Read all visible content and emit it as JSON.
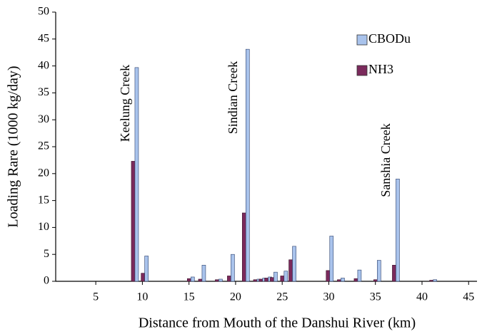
{
  "chart_data": {
    "type": "bar",
    "xlabel": "Distance from Mouth of the Danshui River (km)",
    "ylabel": "Loading Rare (1000 kg/day)",
    "x": [
      9.2,
      10.25,
      15.2,
      16.4,
      18.2,
      19.5,
      21.1,
      22.3,
      22.9,
      23.5,
      24.1,
      25.2,
      26.1,
      30.1,
      31.3,
      33.1,
      35.2,
      37.2,
      41.2
    ],
    "series": [
      {
        "name": "CBODu",
        "color": "#a9c3ec",
        "values": [
          39.7,
          4.7,
          0.8,
          3.0,
          0.4,
          5.0,
          43.1,
          0.4,
          0.6,
          0.8,
          1.7,
          1.9,
          6.5,
          8.4,
          0.6,
          2.1,
          3.9,
          19.0,
          0.3
        ]
      },
      {
        "name": "NH3",
        "color": "#7b2a5c",
        "values": [
          22.3,
          1.5,
          0.5,
          0.4,
          0.3,
          1.0,
          12.7,
          0.3,
          0.4,
          0.6,
          0.7,
          1.0,
          4.0,
          2.0,
          0.3,
          0.5,
          0.3,
          3.0,
          0.2
        ]
      }
    ],
    "annotations": [
      "Keelung Creek",
      "Sindian Creek",
      "Sanshia Creek"
    ],
    "xlim": [
      0.7,
      45.9
    ],
    "xticks": [
      5,
      10,
      15,
      20,
      25,
      30,
      35,
      40,
      45
    ],
    "ylim": [
      0,
      50
    ],
    "yticks": [
      0,
      5,
      10,
      15,
      20,
      25,
      30,
      35,
      40,
      45,
      50
    ]
  }
}
